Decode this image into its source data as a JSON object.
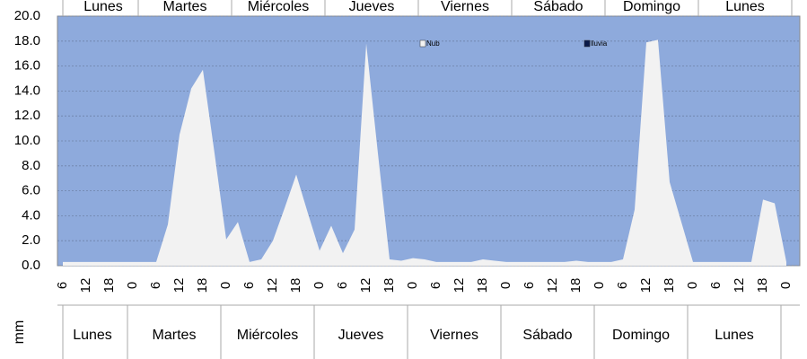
{
  "chart_data": {
    "type": "area",
    "y_label": "mm",
    "categories": [
      "6",
      null,
      "12",
      null,
      "18",
      null,
      "0",
      null,
      "6",
      null,
      "12",
      null,
      "18",
      null,
      "0",
      null,
      "6",
      null,
      "12",
      null,
      "18",
      null,
      "0",
      null,
      "6",
      null,
      "12",
      null,
      "18",
      null,
      "0",
      null,
      "6",
      null,
      "12",
      null,
      "18",
      null,
      "0",
      null,
      "6",
      null,
      "12",
      null,
      "18",
      null,
      "0",
      null,
      "6",
      null,
      "12",
      null,
      "18",
      null,
      "0",
      null,
      "6",
      null,
      "12",
      null,
      "18",
      null,
      "0"
    ],
    "days": [
      "Lunes",
      "Martes",
      "Miércoles",
      "Jueves",
      "Viernes",
      "Sábado",
      "Domingo",
      "Lunes"
    ],
    "series": [
      {
        "name": "Nub",
        "color": "#f2f2f2",
        "values": [
          0.3,
          0.3,
          0.3,
          0.3,
          0.3,
          0.3,
          0.3,
          0.3,
          0.3,
          3.3,
          10.5,
          14.2,
          15.7,
          9.0,
          2.1,
          3.5,
          0.3,
          0.5,
          2.0,
          4.6,
          7.3,
          4.2,
          1.2,
          3.2,
          1.0,
          2.9,
          17.8,
          9.0,
          0.5,
          0.4,
          0.6,
          0.5,
          0.3,
          0.3,
          0.3,
          0.3,
          0.5,
          0.4,
          0.3,
          0.3,
          0.3,
          0.3,
          0.3,
          0.3,
          0.4,
          0.3,
          0.3,
          0.3,
          0.5,
          4.5,
          17.9,
          18.1,
          6.7,
          3.5,
          0.3,
          0.3,
          0.3,
          0.3,
          0.3,
          0.3,
          5.3,
          5.0,
          0.3
        ]
      },
      {
        "name": "lluvia",
        "color": "#0b1a4a",
        "values": [
          0,
          0,
          0,
          0,
          0,
          0,
          0,
          0,
          0,
          0,
          0,
          0,
          0,
          0,
          0,
          0,
          0,
          0,
          0,
          0,
          0,
          0,
          0,
          0,
          0,
          0,
          0,
          0,
          0,
          0,
          0,
          0,
          0,
          0,
          0,
          0,
          0,
          0,
          0,
          0,
          0,
          0,
          0,
          0,
          0,
          0,
          0,
          0,
          0,
          0,
          0,
          0,
          0,
          0,
          0,
          0,
          0,
          0,
          0,
          0,
          0,
          0,
          0
        ]
      }
    ],
    "ylim": [
      0,
      20
    ],
    "yticks": [
      {
        "value": 0,
        "label": "0.0"
      },
      {
        "value": 2,
        "label": "2.0"
      },
      {
        "value": 4,
        "label": "4.0"
      },
      {
        "value": 6,
        "label": "6.0"
      },
      {
        "value": 8,
        "label": "8.0"
      },
      {
        "value": 10,
        "label": "10.0"
      },
      {
        "value": 12,
        "label": "12.0"
      },
      {
        "value": 14,
        "label": "14.0"
      },
      {
        "value": 16,
        "label": "16.0"
      },
      {
        "value": 18,
        "label": "18.0"
      },
      {
        "value": 20,
        "label": "20.0"
      }
    ],
    "grid": true,
    "background": "#8eaadc"
  }
}
